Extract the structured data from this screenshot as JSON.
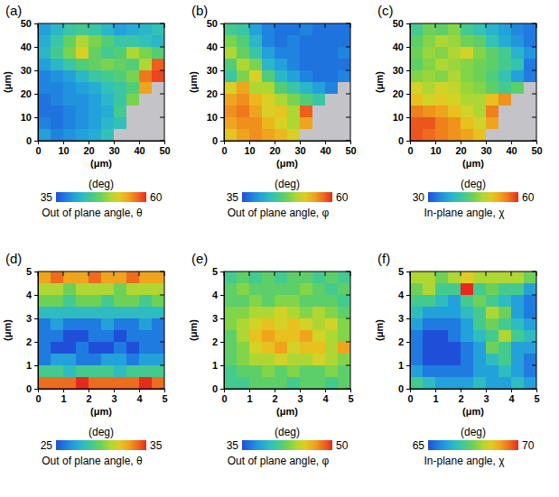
{
  "chart_data": [
    {
      "type": "heatmap",
      "label": "(a)",
      "xlabel": "(μm)",
      "ylabel": "(μm)",
      "xlim": [
        0,
        50
      ],
      "xticks": [
        0,
        10,
        20,
        30,
        40,
        50
      ],
      "ylim": [
        0,
        50
      ],
      "yticks": [
        0,
        10,
        20,
        30,
        40,
        50
      ],
      "x": [
        2.5,
        7.5,
        12.5,
        17.5,
        22.5,
        27.5,
        32.5,
        37.5,
        42.5,
        47.5
      ],
      "y": [
        47.5,
        42.5,
        37.5,
        32.5,
        27.5,
        22.5,
        17.5,
        12.5,
        7.5,
        2.5
      ],
      "cells": [
        [
          40,
          42,
          44,
          45,
          44,
          42,
          40,
          41,
          42,
          43
        ],
        [
          41,
          44,
          47,
          50,
          48,
          46,
          44,
          44,
          43,
          42
        ],
        [
          42,
          45,
          48,
          52,
          47,
          45,
          46,
          50,
          48,
          46
        ],
        [
          40,
          42,
          44,
          46,
          47,
          48,
          47,
          46,
          50,
          58
        ],
        [
          38,
          39,
          40,
          42,
          44,
          45,
          46,
          48,
          57,
          59
        ],
        [
          38,
          38,
          39,
          40,
          41,
          43,
          44,
          46,
          55,
          null
        ],
        [
          37,
          38,
          39,
          39,
          40,
          42,
          44,
          48,
          null,
          null
        ],
        [
          37,
          37,
          38,
          39,
          40,
          41,
          45,
          null,
          null,
          null
        ],
        [
          38,
          37,
          38,
          39,
          40,
          42,
          43,
          null,
          null,
          null
        ],
        [
          40,
          38,
          39,
          40,
          41,
          43,
          null,
          null,
          null,
          null
        ]
      ],
      "colorbar": {
        "label": "(deg)",
        "title": "Out of plane angle, θ",
        "range": [
          35,
          60
        ],
        "ticks": [
          35,
          60
        ]
      }
    },
    {
      "type": "heatmap",
      "label": "(b)",
      "xlabel": "(μm)",
      "ylabel": "(μm)",
      "xlim": [
        0,
        50
      ],
      "xticks": [
        0,
        10,
        20,
        30,
        40,
        50
      ],
      "ylim": [
        0,
        50
      ],
      "yticks": [
        0,
        10,
        20,
        30,
        40,
        50
      ],
      "x": [
        2.5,
        7.5,
        12.5,
        17.5,
        22.5,
        27.5,
        32.5,
        37.5,
        42.5,
        47.5
      ],
      "y": [
        47.5,
        42.5,
        37.5,
        32.5,
        27.5,
        22.5,
        17.5,
        12.5,
        7.5,
        2.5
      ],
      "cells": [
        [
          45,
          44,
          40,
          38,
          37,
          37,
          38,
          37,
          37,
          37
        ],
        [
          48,
          46,
          42,
          38,
          37,
          38,
          37,
          37,
          37,
          37
        ],
        [
          50,
          47,
          44,
          40,
          38,
          38,
          37,
          37,
          37,
          38
        ],
        [
          46,
          50,
          48,
          42,
          40,
          38,
          37,
          37,
          37,
          37
        ],
        [
          44,
          48,
          52,
          46,
          42,
          40,
          38,
          37,
          37,
          38
        ],
        [
          52,
          55,
          50,
          50,
          46,
          44,
          42,
          40,
          38,
          null
        ],
        [
          55,
          56,
          54,
          52,
          50,
          48,
          46,
          44,
          null,
          null
        ],
        [
          56,
          57,
          55,
          52,
          53,
          50,
          58,
          null,
          null,
          null
        ],
        [
          55,
          56,
          56,
          54,
          52,
          50,
          55,
          null,
          null,
          null
        ],
        [
          53,
          55,
          56,
          55,
          54,
          52,
          null,
          null,
          null,
          null
        ]
      ],
      "colorbar": {
        "label": "(deg)",
        "title": "Out of plane angle, φ",
        "range": [
          35,
          60
        ],
        "ticks": [
          35,
          60
        ]
      }
    },
    {
      "type": "heatmap",
      "label": "(c)",
      "xlabel": "(μm)",
      "ylabel": "(μm)",
      "xlim": [
        0,
        50
      ],
      "xticks": [
        0,
        10,
        20,
        30,
        40,
        50
      ],
      "ylim": [
        0,
        50
      ],
      "yticks": [
        0,
        10,
        20,
        30,
        40,
        50
      ],
      "x": [
        2.5,
        7.5,
        12.5,
        17.5,
        22.5,
        27.5,
        32.5,
        37.5,
        42.5,
        47.5
      ],
      "y": [
        47.5,
        42.5,
        37.5,
        32.5,
        27.5,
        22.5,
        17.5,
        12.5,
        7.5,
        2.5
      ],
      "cells": [
        [
          42,
          45,
          44,
          46,
          42,
          40,
          38,
          36,
          34,
          33
        ],
        [
          44,
          46,
          48,
          47,
          45,
          44,
          40,
          37,
          35,
          33
        ],
        [
          45,
          47,
          46,
          48,
          50,
          46,
          44,
          42,
          38,
          35
        ],
        [
          44,
          46,
          48,
          47,
          46,
          45,
          44,
          42,
          40,
          33
        ],
        [
          46,
          47,
          46,
          48,
          46,
          45,
          43,
          40,
          36,
          33
        ],
        [
          50,
          48,
          50,
          49,
          47,
          46,
          44,
          42,
          44,
          null
        ],
        [
          52,
          50,
          51,
          50,
          48,
          48,
          52,
          55,
          null,
          null
        ],
        [
          56,
          55,
          54,
          52,
          50,
          48,
          56,
          null,
          null,
          null
        ],
        [
          58,
          58,
          56,
          55,
          52,
          50,
          54,
          null,
          null,
          null
        ],
        [
          58,
          57,
          56,
          55,
          54,
          52,
          null,
          null,
          null,
          null
        ]
      ],
      "colorbar": {
        "label": "(deg)",
        "title": "In-plane angle, χ",
        "range": [
          30,
          60
        ],
        "ticks": [
          30,
          60
        ]
      }
    },
    {
      "type": "heatmap",
      "label": "(d)",
      "xlabel": "(μm)",
      "ylabel": "(μm)",
      "xlim": [
        0,
        5
      ],
      "xticks": [
        0,
        1,
        2,
        3,
        4,
        5
      ],
      "ylim": [
        0,
        5
      ],
      "yticks": [
        0,
        1,
        2,
        3,
        4,
        5
      ],
      "x": [
        0.25,
        0.75,
        1.25,
        1.75,
        2.25,
        2.75,
        3.25,
        3.75,
        4.25,
        4.75
      ],
      "y": [
        4.75,
        4.25,
        3.75,
        3.25,
        2.75,
        2.25,
        1.75,
        1.25,
        0.75,
        0.25
      ],
      "cells": [
        [
          33,
          34,
          33,
          33,
          34,
          33,
          33,
          34,
          33,
          33
        ],
        [
          31,
          31,
          30,
          31,
          31,
          31,
          30,
          31,
          31,
          31
        ],
        [
          30,
          30,
          29,
          30,
          30,
          29,
          30,
          30,
          29,
          30
        ],
        [
          28,
          28,
          28,
          28,
          28,
          28,
          28,
          28,
          28,
          28
        ],
        [
          26,
          27,
          26,
          26,
          26,
          27,
          26,
          26,
          27,
          26
        ],
        [
          26,
          26,
          25,
          25,
          26,
          26,
          25,
          26,
          26,
          26
        ],
        [
          26,
          25,
          25,
          26,
          25,
          25,
          26,
          25,
          26,
          26
        ],
        [
          26,
          27,
          27,
          26,
          26,
          27,
          27,
          26,
          27,
          27
        ],
        [
          29,
          29,
          28,
          29,
          29,
          29,
          28,
          29,
          29,
          29
        ],
        [
          34,
          34,
          34,
          35,
          34,
          34,
          34,
          34,
          35,
          34
        ]
      ],
      "colorbar": {
        "label": "(deg)",
        "title": "Out of plane angle, θ",
        "range": [
          25,
          35
        ],
        "ticks": [
          25,
          35
        ]
      }
    },
    {
      "type": "heatmap",
      "label": "(e)",
      "xlabel": "(μm)",
      "ylabel": "(μm)",
      "xlim": [
        0,
        5
      ],
      "xticks": [
        0,
        1,
        2,
        3,
        4,
        5
      ],
      "ylim": [
        0,
        5
      ],
      "yticks": [
        0,
        1,
        2,
        3,
        4,
        5
      ],
      "x": [
        0.25,
        0.75,
        1.25,
        1.75,
        2.25,
        2.75,
        3.25,
        3.75,
        4.25,
        4.75
      ],
      "y": [
        4.75,
        4.25,
        3.75,
        3.25,
        2.75,
        2.25,
        1.75,
        1.25,
        0.75,
        0.25
      ],
      "cells": [
        [
          41,
          42,
          41,
          42,
          41,
          42,
          42,
          41,
          42,
          41
        ],
        [
          42,
          43,
          42,
          42,
          42,
          42,
          43,
          42,
          41,
          42
        ],
        [
          42,
          42,
          43,
          42,
          43,
          43,
          42,
          42,
          42,
          41
        ],
        [
          43,
          43,
          44,
          44,
          45,
          44,
          43,
          44,
          43,
          42
        ],
        [
          43,
          44,
          45,
          46,
          45,
          46,
          45,
          44,
          45,
          43
        ],
        [
          42,
          44,
          46,
          47,
          46,
          46,
          47,
          45,
          44,
          43
        ],
        [
          42,
          43,
          45,
          46,
          47,
          45,
          46,
          46,
          44,
          47
        ],
        [
          42,
          43,
          44,
          44,
          45,
          44,
          44,
          45,
          44,
          43
        ],
        [
          41,
          42,
          42,
          43,
          42,
          43,
          42,
          42,
          43,
          42
        ],
        [
          41,
          41,
          42,
          42,
          42,
          41,
          42,
          42,
          41,
          42
        ]
      ],
      "colorbar": {
        "label": "(deg)",
        "title": "Out of plane angle, φ",
        "range": [
          35,
          50
        ],
        "ticks": [
          35,
          50
        ]
      }
    },
    {
      "type": "heatmap",
      "label": "(f)",
      "xlabel": "(μm)",
      "ylabel": "(μm)",
      "xlim": [
        0,
        5
      ],
      "xticks": [
        0,
        1,
        2,
        3,
        4,
        5
      ],
      "ylim": [
        0,
        5
      ],
      "yticks": [
        0,
        1,
        2,
        3,
        4,
        5
      ],
      "x": [
        0.25,
        0.75,
        1.25,
        1.75,
        2.25,
        2.75,
        3.25,
        3.75,
        4.25,
        4.75
      ],
      "y": [
        4.75,
        4.25,
        3.75,
        3.25,
        2.75,
        2.25,
        1.75,
        1.25,
        0.75,
        0.25
      ],
      "cells": [
        [
          68,
          68,
          67.5,
          68,
          68.5,
          68,
          68,
          68,
          68,
          67.5
        ],
        [
          67.5,
          68,
          67,
          67,
          70,
          67,
          67.5,
          67,
          67,
          66
        ],
        [
          67,
          67,
          66.5,
          66,
          67,
          67.5,
          67,
          66.5,
          66,
          65.5
        ],
        [
          66.5,
          66,
          66,
          66,
          66.5,
          67,
          68,
          67.5,
          66,
          65.5
        ],
        [
          66,
          65.5,
          65.5,
          65.5,
          66,
          67,
          67.5,
          67,
          66.5,
          66
        ],
        [
          65.5,
          65,
          65,
          65.5,
          66,
          66.5,
          67,
          68,
          67,
          66.5
        ],
        [
          65.5,
          65,
          65,
          65,
          65.5,
          66,
          67.5,
          67,
          66,
          66
        ],
        [
          65.5,
          65,
          65,
          65,
          65.5,
          66,
          66.5,
          67,
          66,
          65.5
        ],
        [
          66,
          65.5,
          65.5,
          65.5,
          65.5,
          66,
          66,
          66.5,
          66,
          65.5
        ],
        [
          67,
          66.5,
          66,
          66,
          66,
          66.5,
          66,
          66,
          66.5,
          66
        ]
      ],
      "colorbar": {
        "label": "(deg)",
        "title": "In-plane angle, χ",
        "range": [
          65,
          70
        ],
        "ticks": [
          65,
          70
        ]
      }
    }
  ]
}
